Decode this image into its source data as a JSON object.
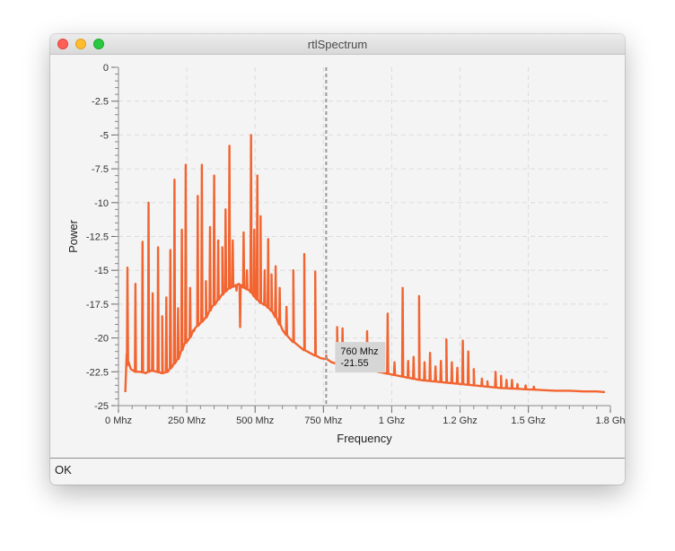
{
  "window": {
    "title": "rtlSpectrum"
  },
  "status": {
    "text": "OK"
  },
  "colors": {
    "series": "#f26430",
    "cursor": "#9a9a9a",
    "grid": "#dcdcdc",
    "plot_bg": "#f4f4f4"
  },
  "icons": [
    "close-button",
    "minimize-button",
    "zoom-button"
  ],
  "chart_data": {
    "type": "line",
    "xlabel": "Frequency",
    "ylabel": "Power",
    "xlim": [
      0,
      1800
    ],
    "ylim": [
      -25,
      0
    ],
    "x_ticks": [
      {
        "value": 0,
        "label": "0 Mhz"
      },
      {
        "value": 250,
        "label": "250 Mhz"
      },
      {
        "value": 500,
        "label": "500 Mhz"
      },
      {
        "value": 750,
        "label": "750 Mhz"
      },
      {
        "value": 1000,
        "label": "1 Ghz"
      },
      {
        "value": 1250,
        "label": "1.2 Ghz"
      },
      {
        "value": 1500,
        "label": "1.5 Ghz"
      },
      {
        "value": 1800,
        "label": "1.8 Gh"
      }
    ],
    "y_ticks": [
      {
        "value": 0,
        "label": "0"
      },
      {
        "value": -2.5,
        "label": "-2.5"
      },
      {
        "value": -5,
        "label": "-5"
      },
      {
        "value": -7.5,
        "label": "-7.5"
      },
      {
        "value": -10,
        "label": "-10"
      },
      {
        "value": -12.5,
        "label": "-12.5"
      },
      {
        "value": -15,
        "label": "-15"
      },
      {
        "value": -17.5,
        "label": "-17.5"
      },
      {
        "value": -20,
        "label": "-20"
      },
      {
        "value": -22.5,
        "label": "-22.5"
      },
      {
        "value": -25,
        "label": "-25"
      }
    ],
    "grid": true,
    "legend": "none",
    "cursor": {
      "x": 760,
      "label_freq": "760 Mhz",
      "label_power": "-21.55"
    },
    "series": [
      {
        "x": [
          25,
          30,
          35,
          45,
          60,
          80,
          100,
          120,
          140,
          160,
          180,
          200,
          220,
          240,
          260,
          280,
          300,
          320,
          340,
          360,
          380,
          400,
          420,
          440,
          460,
          480,
          500,
          520,
          540,
          560,
          580,
          600,
          620,
          640,
          660,
          680,
          700,
          720,
          740,
          760,
          780,
          800,
          830,
          860,
          900,
          950,
          1000,
          1050,
          1100,
          1150,
          1200,
          1250,
          1300,
          1350,
          1400,
          1450,
          1500,
          1550,
          1600,
          1650,
          1700,
          1750,
          1780
        ],
        "y": [
          -24,
          -21.2,
          -22,
          -22.3,
          -22.5,
          -22.5,
          -22.6,
          -22.4,
          -22.5,
          -22.6,
          -22.5,
          -22,
          -21.5,
          -20.5,
          -20,
          -19.3,
          -18.9,
          -18.5,
          -17.8,
          -17.3,
          -16.8,
          -16.4,
          -16.2,
          -16,
          -16.3,
          -16.5,
          -17,
          -17.4,
          -17.6,
          -18,
          -18.6,
          -19.4,
          -19.9,
          -20.3,
          -20.6,
          -20.9,
          -21.1,
          -21.3,
          -21.5,
          -21.55,
          -21.8,
          -21.9,
          -22,
          -22.1,
          -22.3,
          -22.5,
          -22.7,
          -22.9,
          -23.1,
          -23.2,
          -23.3,
          -23.4,
          -23.5,
          -23.6,
          -23.7,
          -23.75,
          -23.8,
          -23.85,
          -23.9,
          -23.9,
          -23.95,
          -23.95,
          -24
        ],
        "peaks": [
          [
            33,
            -14.8
          ],
          [
            62,
            -16
          ],
          [
            88,
            -12.9
          ],
          [
            110,
            -10
          ],
          [
            125,
            -16.7
          ],
          [
            145,
            -13.3
          ],
          [
            160,
            -18.4
          ],
          [
            175,
            -17
          ],
          [
            190,
            -13.5
          ],
          [
            205,
            -8.3
          ],
          [
            218,
            -17.8
          ],
          [
            232,
            -12
          ],
          [
            246,
            -7.2
          ],
          [
            262,
            -16.3
          ],
          [
            275,
            -19.4
          ],
          [
            290,
            -9.5
          ],
          [
            305,
            -7.2
          ],
          [
            320,
            -15.8
          ],
          [
            335,
            -11.8
          ],
          [
            350,
            -8
          ],
          [
            365,
            -12.8
          ],
          [
            380,
            -13.3
          ],
          [
            392,
            -10.5
          ],
          [
            406,
            -5.8
          ],
          [
            418,
            -12.8
          ],
          [
            432,
            -16.5
          ],
          [
            445,
            -19.2
          ],
          [
            458,
            -12.2
          ],
          [
            470,
            -15
          ],
          [
            485,
            -5
          ],
          [
            497,
            -12
          ],
          [
            508,
            -8
          ],
          [
            520,
            -11
          ],
          [
            535,
            -15
          ],
          [
            548,
            -12.7
          ],
          [
            560,
            -15.3
          ],
          [
            575,
            -14.7
          ],
          [
            590,
            -16.3
          ],
          [
            615,
            -17.7
          ],
          [
            640,
            -15
          ],
          [
            680,
            -13.8
          ],
          [
            720,
            -15.1
          ],
          [
            760,
            -21.3
          ],
          [
            800,
            -19.2
          ],
          [
            820,
            -19.3
          ],
          [
            850,
            -20.5
          ],
          [
            880,
            -21.5
          ],
          [
            910,
            -19.5
          ],
          [
            930,
            -21.1
          ],
          [
            960,
            -20.9
          ],
          [
            985,
            -18.2
          ],
          [
            1010,
            -21.8
          ],
          [
            1040,
            -16.3
          ],
          [
            1060,
            -21.7
          ],
          [
            1080,
            -21.4
          ],
          [
            1100,
            -16.9
          ],
          [
            1120,
            -21.8
          ],
          [
            1140,
            -21.1
          ],
          [
            1160,
            -22.1
          ],
          [
            1180,
            -21.7
          ],
          [
            1200,
            -20.1
          ],
          [
            1220,
            -21.8
          ],
          [
            1240,
            -22.2
          ],
          [
            1260,
            -20.2
          ],
          [
            1280,
            -21
          ],
          [
            1300,
            -22.3
          ],
          [
            1330,
            -23
          ],
          [
            1350,
            -23.2
          ],
          [
            1380,
            -22.5
          ],
          [
            1400,
            -22.8
          ],
          [
            1420,
            -23.1
          ],
          [
            1440,
            -23.1
          ],
          [
            1460,
            -23.4
          ],
          [
            1490,
            -23.5
          ],
          [
            1520,
            -23.6
          ]
        ]
      }
    ]
  }
}
